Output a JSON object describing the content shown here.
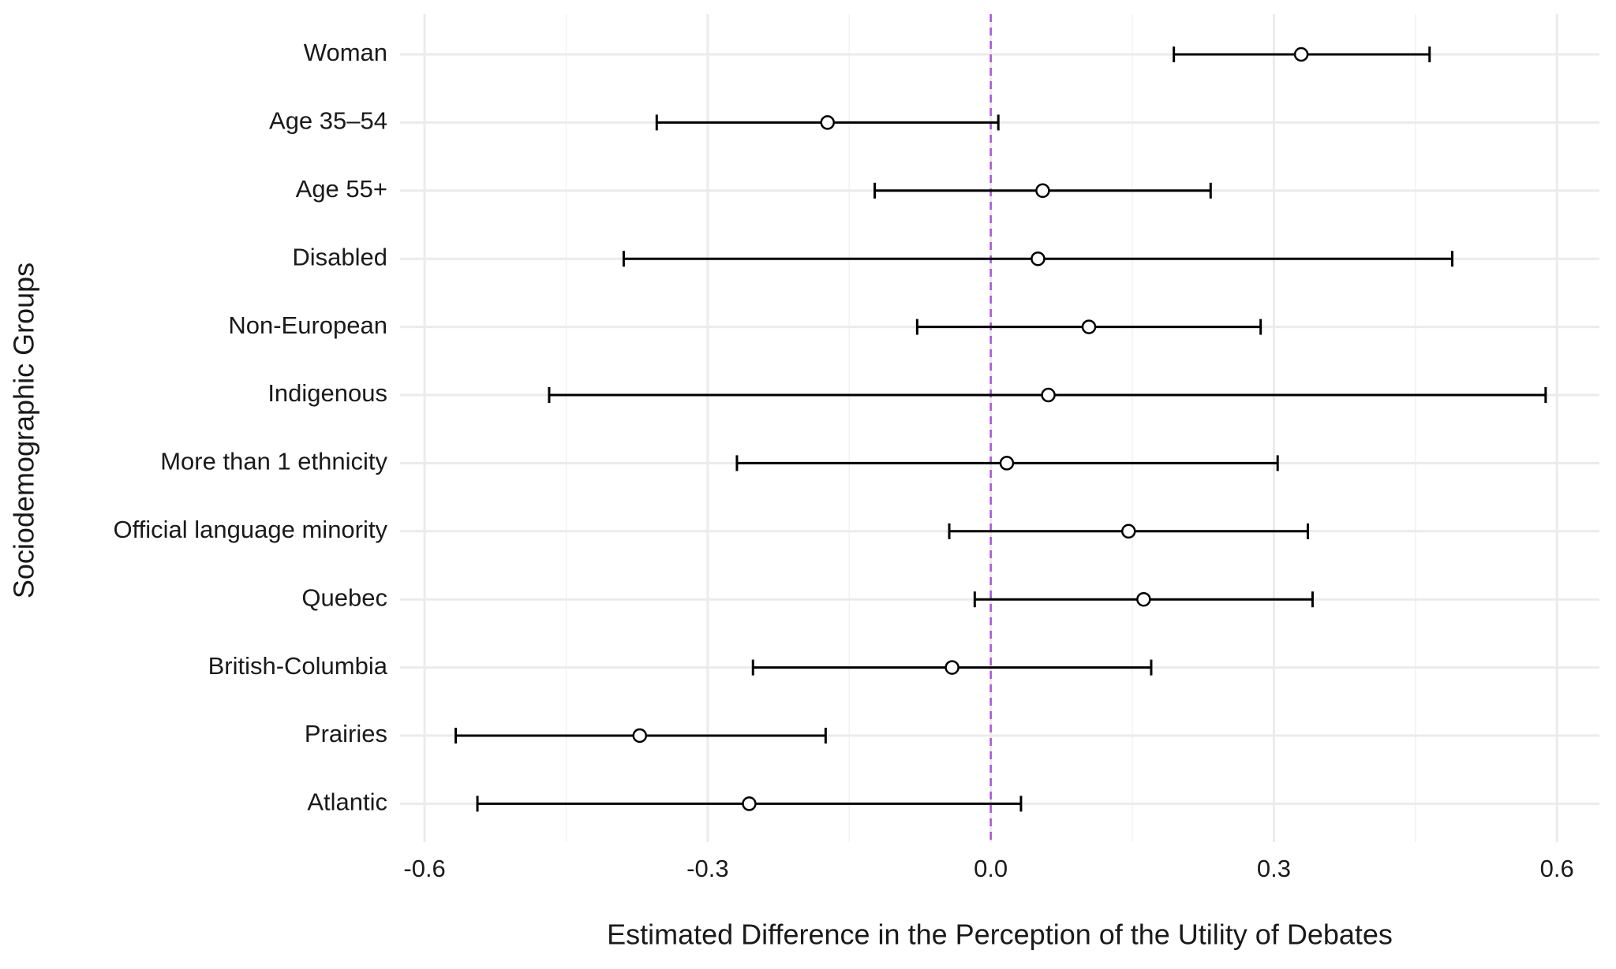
{
  "chart_data": {
    "type": "forest",
    "x_label": "Estimated Difference in the Perception of the Utility of Debates",
    "y_label": "Sociodemographic Groups",
    "categories": [
      "Woman",
      "Age 35–54",
      "Age 55+",
      "Disabled",
      "Non-European",
      "Indigenous",
      "More than 1 ethnicity",
      "Official language minority",
      "Quebec",
      "British-Columbia",
      "Prairies",
      "Atlantic"
    ],
    "values": [
      0.329,
      -0.173,
      0.055,
      0.05,
      0.104,
      0.061,
      0.017,
      0.146,
      0.162,
      -0.041,
      -0.372,
      -0.256
    ],
    "lower": [
      0.194,
      -0.354,
      -0.123,
      -0.389,
      -0.078,
      -0.468,
      -0.269,
      -0.044,
      -0.017,
      -0.252,
      -0.567,
      -0.544
    ],
    "upper": [
      0.465,
      0.008,
      0.233,
      0.489,
      0.286,
      0.588,
      0.304,
      0.336,
      0.341,
      0.17,
      -0.175,
      0.032
    ],
    "color": "#000000",
    "xlim": [
      -0.626,
      0.645
    ],
    "xticks": [
      -0.6,
      -0.3,
      {
        "value": 0,
        "label": "0.0"
      },
      0.3,
      0.6
    ],
    "xminorticks": [
      -0.45,
      -0.15,
      0.15,
      0.45
    ],
    "reference_line": {
      "value": 0,
      "color": "#a855d6"
    },
    "grid": true
  }
}
